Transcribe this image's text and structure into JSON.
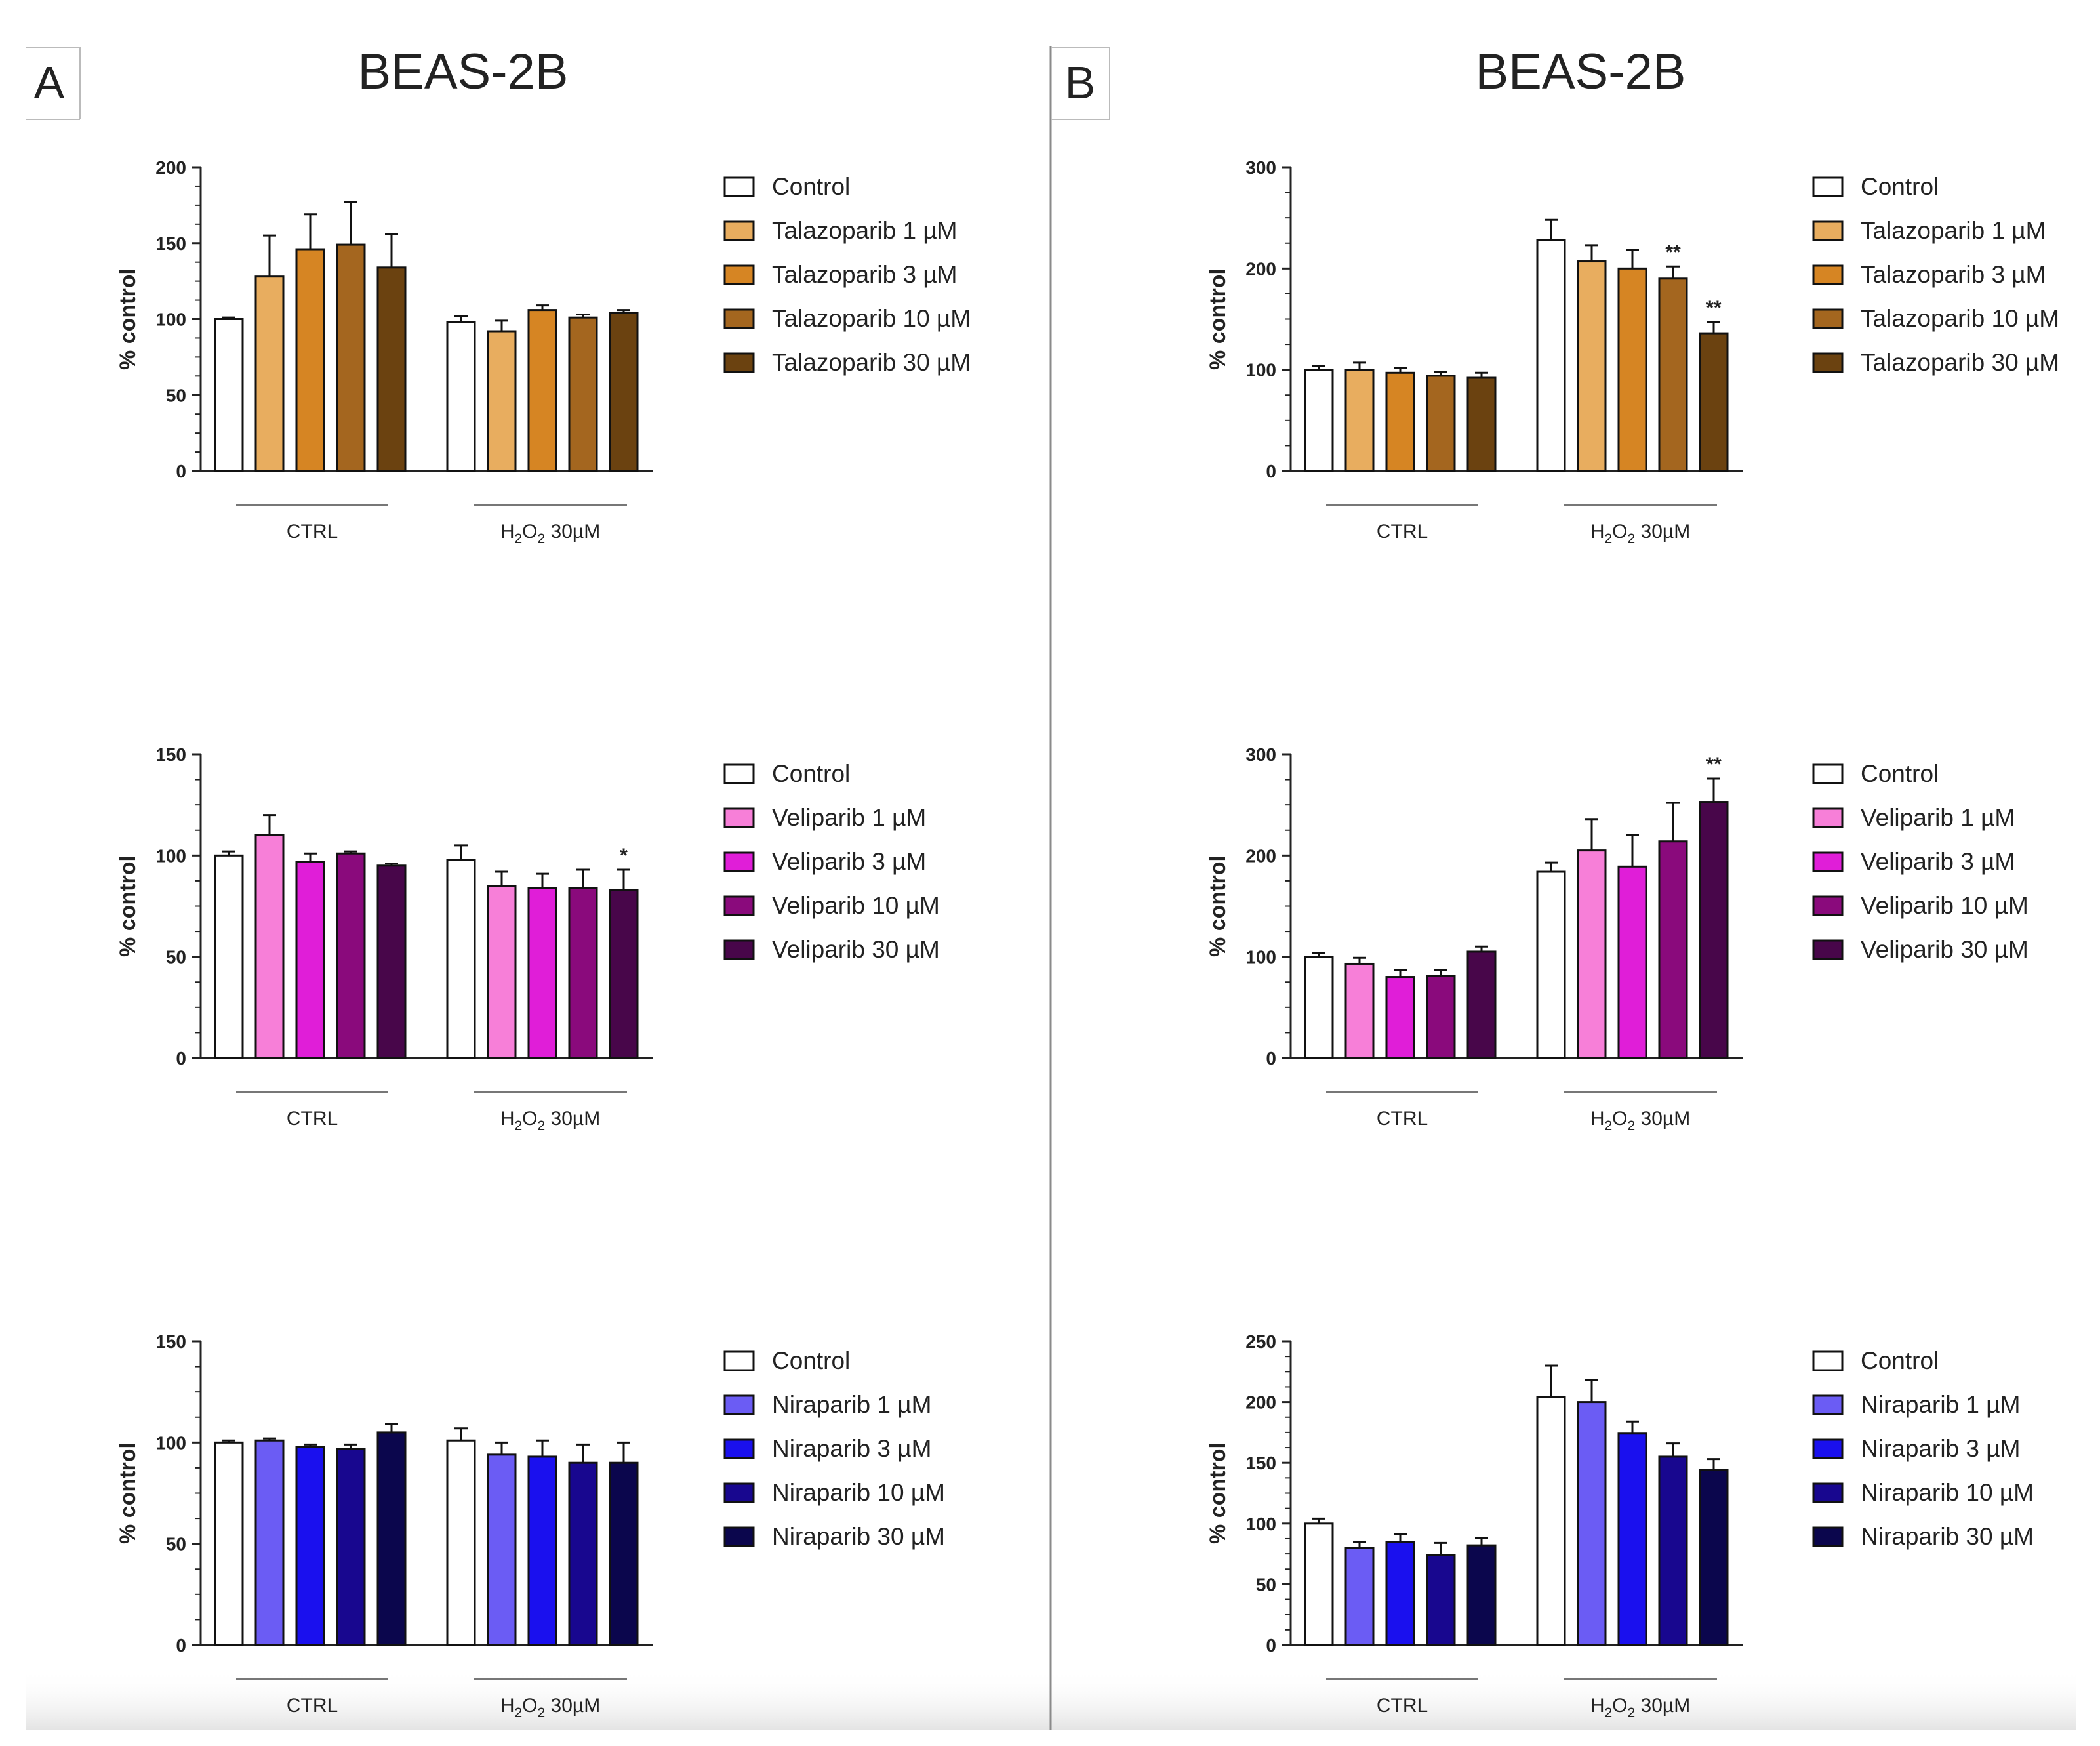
{
  "panels": [
    {
      "letter": "A",
      "title": "BEAS-2B"
    },
    {
      "letter": "B",
      "title": "BEAS-2B"
    }
  ],
  "group_labels": {
    "ctrl": "CTRL",
    "h2o2_main": "H",
    "h2o2_sub1": "2",
    "h2o2_mid": "O",
    "h2o2_sub2": "2",
    "h2o2_tail": " 30µM"
  },
  "colors": {
    "talazoparib": [
      "#ffffff",
      "#e8ad5f",
      "#d68523",
      "#a4661f",
      "#6b4210"
    ],
    "veliparib": [
      "#ffffff",
      "#f77fd8",
      "#e01ed8",
      "#8a0a7c",
      "#48064a"
    ],
    "niraparib": [
      "#ffffff",
      "#6b5cf4",
      "#1a10ee",
      "#18078f",
      "#0b064d"
    ]
  },
  "chart_data": [
    {
      "type": "bar",
      "panel": "A",
      "row": 0,
      "drug": "talazoparib",
      "ylabel": "% control",
      "ylim": [
        0,
        200
      ],
      "yticks": [
        0,
        50,
        100,
        150,
        200
      ],
      "categories": [
        "CTRL",
        "H2O2 30µM"
      ],
      "legend": [
        "Control",
        "Talazoparib 1 µM",
        "Talazoparib 3 µM",
        "Talazoparib 10 µM",
        "Talazoparib 30 µM"
      ],
      "series": [
        {
          "name": "Control",
          "values": [
            100,
            98
          ],
          "errors": [
            1,
            4
          ],
          "marks": [
            "",
            ""
          ]
        },
        {
          "name": "Talazoparib 1 µM",
          "values": [
            128,
            92
          ],
          "errors": [
            27,
            7
          ],
          "marks": [
            "",
            ""
          ]
        },
        {
          "name": "Talazoparib 3 µM",
          "values": [
            146,
            106
          ],
          "errors": [
            23,
            3
          ],
          "marks": [
            "",
            ""
          ]
        },
        {
          "name": "Talazoparib 10 µM",
          "values": [
            149,
            101
          ],
          "errors": [
            28,
            2
          ],
          "marks": [
            "",
            ""
          ]
        },
        {
          "name": "Talazoparib 30 µM",
          "values": [
            134,
            104
          ],
          "errors": [
            22,
            2
          ],
          "marks": [
            "",
            ""
          ]
        }
      ]
    },
    {
      "type": "bar",
      "panel": "B",
      "row": 0,
      "drug": "talazoparib",
      "ylabel": "% control",
      "ylim": [
        0,
        300
      ],
      "yticks": [
        0,
        100,
        200,
        300
      ],
      "categories": [
        "CTRL",
        "H2O2 30µM"
      ],
      "legend": [
        "Control",
        "Talazoparib 1 µM",
        "Talazoparib 3 µM",
        "Talazoparib 10 µM",
        "Talazoparib 30 µM"
      ],
      "series": [
        {
          "name": "Control",
          "values": [
            100,
            228
          ],
          "errors": [
            4,
            20
          ],
          "marks": [
            "",
            ""
          ]
        },
        {
          "name": "Talazoparib 1 µM",
          "values": [
            100,
            207
          ],
          "errors": [
            7,
            16
          ],
          "marks": [
            "",
            ""
          ]
        },
        {
          "name": "Talazoparib 3 µM",
          "values": [
            97,
            200
          ],
          "errors": [
            5,
            18
          ],
          "marks": [
            "",
            ""
          ]
        },
        {
          "name": "Talazoparib 10 µM",
          "values": [
            94,
            190
          ],
          "errors": [
            4,
            12
          ],
          "marks": [
            "",
            "**"
          ]
        },
        {
          "name": "Talazoparib 30 µM",
          "values": [
            92,
            136
          ],
          "errors": [
            5,
            11
          ],
          "marks": [
            "",
            "**"
          ]
        }
      ]
    },
    {
      "type": "bar",
      "panel": "A",
      "row": 1,
      "drug": "veliparib",
      "ylabel": "% control",
      "ylim": [
        0,
        150
      ],
      "yticks": [
        0,
        50,
        100,
        150
      ],
      "categories": [
        "CTRL",
        "H2O2 30µM"
      ],
      "legend": [
        "Control",
        "Veliparib  1 µM",
        "Veliparib  3 µM",
        "Veliparib  10 µM",
        "Veliparib  30 µM"
      ],
      "series": [
        {
          "name": "Control",
          "values": [
            100,
            98
          ],
          "errors": [
            2,
            7
          ],
          "marks": [
            "",
            ""
          ]
        },
        {
          "name": "Veliparib 1 µM",
          "values": [
            110,
            85
          ],
          "errors": [
            10,
            7
          ],
          "marks": [
            "",
            ""
          ]
        },
        {
          "name": "Veliparib 3 µM",
          "values": [
            97,
            84
          ],
          "errors": [
            4,
            7
          ],
          "marks": [
            "",
            ""
          ]
        },
        {
          "name": "Veliparib 10 µM",
          "values": [
            101,
            84
          ],
          "errors": [
            1,
            9
          ],
          "marks": [
            "",
            ""
          ]
        },
        {
          "name": "Veliparib 30 µM",
          "values": [
            95,
            83
          ],
          "errors": [
            1,
            10
          ],
          "marks": [
            "",
            "*"
          ]
        }
      ]
    },
    {
      "type": "bar",
      "panel": "B",
      "row": 1,
      "drug": "veliparib",
      "ylabel": "% control",
      "ylim": [
        0,
        300
      ],
      "yticks": [
        0,
        100,
        200,
        300
      ],
      "categories": [
        "CTRL",
        "H2O2 30µM"
      ],
      "legend": [
        "Control",
        "Veliparib  1 µM",
        "Veliparib  3 µM",
        "Veliparib  10 µM",
        "Veliparib  30 µM"
      ],
      "series": [
        {
          "name": "Control",
          "values": [
            100,
            184
          ],
          "errors": [
            4,
            9
          ],
          "marks": [
            "",
            ""
          ]
        },
        {
          "name": "Veliparib 1 µM",
          "values": [
            93,
            205
          ],
          "errors": [
            6,
            31
          ],
          "marks": [
            "",
            ""
          ]
        },
        {
          "name": "Veliparib 3 µM",
          "values": [
            80,
            189
          ],
          "errors": [
            7,
            31
          ],
          "marks": [
            "",
            ""
          ]
        },
        {
          "name": "Veliparib 10 µM",
          "values": [
            81,
            214
          ],
          "errors": [
            6,
            38
          ],
          "marks": [
            "",
            ""
          ]
        },
        {
          "name": "Veliparib 30 µM",
          "values": [
            105,
            253
          ],
          "errors": [
            5,
            23
          ],
          "marks": [
            "",
            "**"
          ]
        }
      ]
    },
    {
      "type": "bar",
      "panel": "A",
      "row": 2,
      "drug": "niraparib",
      "ylabel": "% control",
      "ylim": [
        0,
        150
      ],
      "yticks": [
        0,
        50,
        100,
        150
      ],
      "categories": [
        "CTRL",
        "H2O2 30µM"
      ],
      "legend": [
        "Control",
        "Niraparib 1 µM",
        "Niraparib 3 µM",
        "Niraparib 10 µM",
        "Niraparib 30 µM"
      ],
      "series": [
        {
          "name": "Control",
          "values": [
            100,
            101
          ],
          "errors": [
            1,
            6
          ],
          "marks": [
            "",
            ""
          ]
        },
        {
          "name": "Niraparib 1 µM",
          "values": [
            101,
            94
          ],
          "errors": [
            1,
            6
          ],
          "marks": [
            "",
            ""
          ]
        },
        {
          "name": "Niraparib 3 µM",
          "values": [
            98,
            93
          ],
          "errors": [
            1,
            8
          ],
          "marks": [
            "",
            ""
          ]
        },
        {
          "name": "Niraparib 10 µM",
          "values": [
            97,
            90
          ],
          "errors": [
            2,
            9
          ],
          "marks": [
            "",
            ""
          ]
        },
        {
          "name": "Niraparib 30 µM",
          "values": [
            105,
            90
          ],
          "errors": [
            4,
            10
          ],
          "marks": [
            "",
            ""
          ]
        }
      ]
    },
    {
      "type": "bar",
      "panel": "B",
      "row": 2,
      "drug": "niraparib",
      "ylabel": "% control",
      "ylim": [
        0,
        250
      ],
      "yticks": [
        0,
        50,
        100,
        150,
        200,
        250
      ],
      "categories": [
        "CTRL",
        "H2O2 30µM"
      ],
      "legend": [
        "Control",
        "Niraparib 1 µM",
        "Niraparib 3 µM",
        "Niraparib 10 µM",
        "Niraparib 30 µM"
      ],
      "series": [
        {
          "name": "Control",
          "values": [
            100,
            204
          ],
          "errors": [
            4,
            26
          ],
          "marks": [
            "",
            ""
          ]
        },
        {
          "name": "Niraparib 1 µM",
          "values": [
            80,
            200
          ],
          "errors": [
            5,
            18
          ],
          "marks": [
            "",
            ""
          ]
        },
        {
          "name": "Niraparib 3 µM",
          "values": [
            85,
            174
          ],
          "errors": [
            6,
            10
          ],
          "marks": [
            "",
            ""
          ]
        },
        {
          "name": "Niraparib 10 µM",
          "values": [
            74,
            155
          ],
          "errors": [
            10,
            11
          ],
          "marks": [
            "",
            ""
          ]
        },
        {
          "name": "Niraparib 30 µM",
          "values": [
            82,
            144
          ],
          "errors": [
            6,
            9
          ],
          "marks": [
            "",
            ""
          ]
        }
      ]
    }
  ]
}
